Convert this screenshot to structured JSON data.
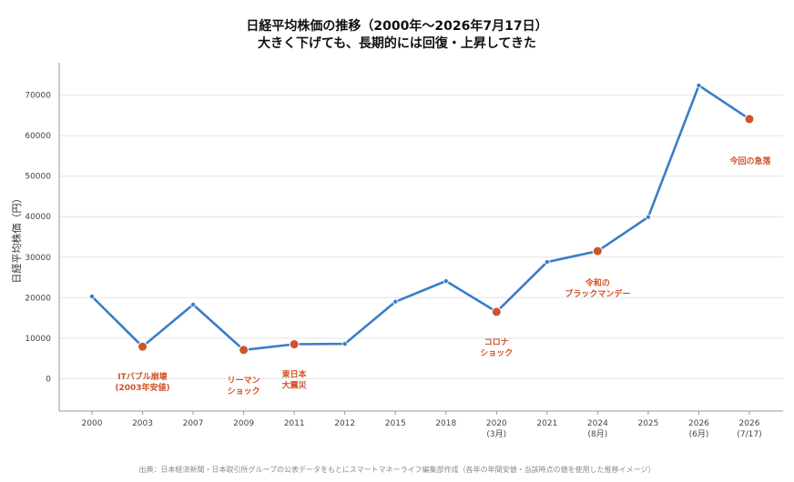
{
  "chart_data": {
    "type": "line",
    "title": "日経平均株価の推移（2000年〜2026年7月17日）",
    "subtitle": "大きく下げても、長期的には回復・上昇してきた",
    "ylabel": "日経平均株価（円）",
    "xlabel": "",
    "ylim": [
      -8000,
      78000
    ],
    "yticks": [
      0,
      10000,
      20000,
      30000,
      40000,
      50000,
      60000,
      70000
    ],
    "grid": true,
    "line_color": "#3a7dc9",
    "marker_color": "#d0532a",
    "categories": [
      {
        "label": "2000",
        "sub": ""
      },
      {
        "label": "2003",
        "sub": ""
      },
      {
        "label": "2007",
        "sub": ""
      },
      {
        "label": "2009",
        "sub": ""
      },
      {
        "label": "2011",
        "sub": ""
      },
      {
        "label": "2012",
        "sub": ""
      },
      {
        "label": "2015",
        "sub": ""
      },
      {
        "label": "2018",
        "sub": ""
      },
      {
        "label": "2020",
        "sub": "(3月)"
      },
      {
        "label": "2021",
        "sub": ""
      },
      {
        "label": "2024",
        "sub": "(8月)"
      },
      {
        "label": "2025",
        "sub": ""
      },
      {
        "label": "2026",
        "sub": "(6月)"
      },
      {
        "label": "2026",
        "sub": "(7/17)"
      }
    ],
    "values": [
      20300,
      7900,
      18300,
      7100,
      8500,
      8600,
      19000,
      24100,
      16500,
      28800,
      31500,
      39900,
      72400,
      64100
    ],
    "highlighted": [
      1,
      3,
      4,
      8,
      10,
      13
    ],
    "annotations": [
      {
        "index": 1,
        "lines": [
          "ITバブル崩壊",
          "(2003年安値)"
        ]
      },
      {
        "index": 3,
        "lines": [
          "リーマン",
          "ショック"
        ]
      },
      {
        "index": 4,
        "lines": [
          "東日本",
          "大震災"
        ]
      },
      {
        "index": 8,
        "lines": [
          "コロナ",
          "ショック"
        ]
      },
      {
        "index": 10,
        "lines": [
          "令和の",
          "ブラックマンデー"
        ]
      },
      {
        "index": 13,
        "lines": [
          "今回の急落"
        ]
      }
    ]
  },
  "footer": "出典：日本経済新聞・日本取引所グループの公表データをもとにスマートマネーライフ編集部作成（各年の年間安値・当該時点の値を使用した推移イメージ）"
}
